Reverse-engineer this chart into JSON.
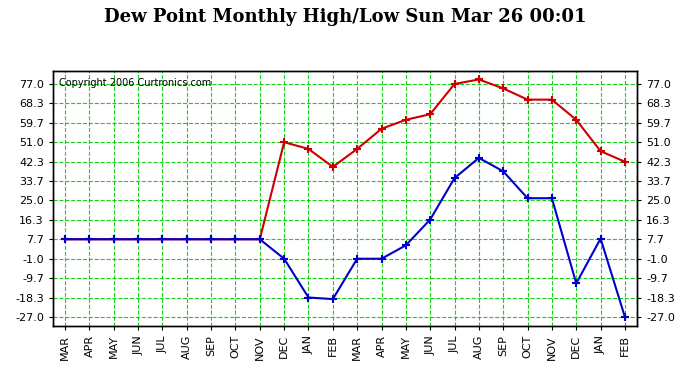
{
  "title": "Dew Point Monthly High/Low Sun Mar 26 00:01",
  "copyright": "Copyright 2006 Curtronics.com",
  "months": [
    "MAR",
    "APR",
    "MAY",
    "JUN",
    "JUL",
    "AUG",
    "SEP",
    "OCT",
    "NOV",
    "DEC",
    "JAN",
    "FEB",
    "MAR",
    "APR",
    "MAY",
    "JUN",
    "JUL",
    "AUG",
    "SEP",
    "OCT",
    "NOV",
    "DEC",
    "JAN",
    "FEB"
  ],
  "high_values": [
    7.7,
    7.7,
    7.7,
    7.7,
    7.7,
    7.7,
    7.7,
    7.7,
    7.7,
    51.0,
    48.0,
    40.0,
    48.0,
    57.0,
    61.0,
    63.5,
    77.0,
    79.0,
    75.0,
    70.0,
    70.0,
    61.0,
    47.0,
    42.3
  ],
  "low_values": [
    7.7,
    7.7,
    7.7,
    7.7,
    7.7,
    7.7,
    7.7,
    7.7,
    7.7,
    -1.0,
    -18.3,
    -19.0,
    -1.0,
    -1.0,
    5.0,
    16.5,
    35.0,
    44.0,
    38.0,
    26.0,
    26.0,
    -12.0,
    8.0,
    -27.0
  ],
  "high_color": "#cc0000",
  "low_color": "#0000cc",
  "bg_color": "#ffffff",
  "plot_bg_color": "#ffffff",
  "grid_color": "#00cc00",
  "title_fontsize": 13,
  "yticks": [
    -27.0,
    -18.3,
    -9.7,
    -1.0,
    7.7,
    16.3,
    25.0,
    33.7,
    42.3,
    51.0,
    59.7,
    68.3,
    77.0
  ],
  "ylim": [
    -31,
    83
  ]
}
